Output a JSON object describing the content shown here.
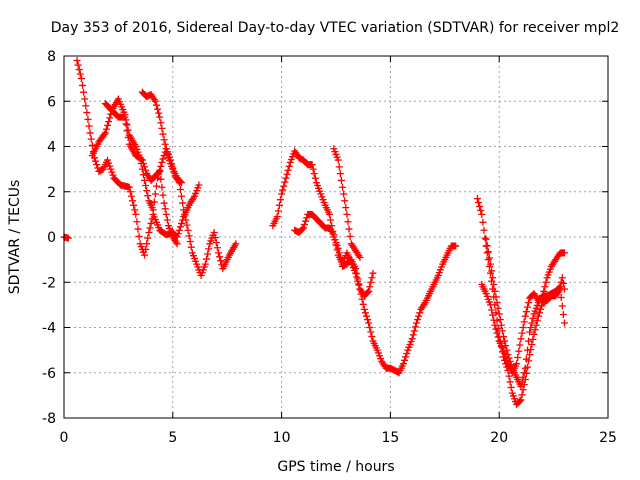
{
  "chart_data": {
    "type": "scatter",
    "title": "Day 353 of 2016, Sidereal Day-to-day VTEC variation (SDTVAR) for receiver mpl2",
    "xlabel": "GPS time / hours",
    "ylabel": "SDTVAR / TECUs",
    "xlim": [
      0,
      25
    ],
    "ylim": [
      -8,
      8
    ],
    "xticks": [
      "0",
      "5",
      "10",
      "15",
      "20",
      "25"
    ],
    "yticks": [
      "-8",
      "-6",
      "-4",
      "-2",
      "0",
      "2",
      "4",
      "6",
      "8"
    ],
    "grid": true,
    "marker": "plus",
    "color": "#ff0000",
    "segments": [
      {
        "points": [
          [
            0.0,
            0.0
          ],
          [
            0.2,
            -0.05
          ]
        ]
      },
      {
        "points": [
          [
            0.6,
            7.8
          ],
          [
            0.8,
            7.0
          ],
          [
            1.0,
            5.8
          ],
          [
            1.2,
            4.6
          ],
          [
            1.4,
            3.5
          ],
          [
            1.6,
            2.9
          ],
          [
            1.8,
            3.0
          ],
          [
            2.0,
            3.4
          ],
          [
            2.3,
            2.6
          ],
          [
            2.6,
            2.3
          ],
          [
            3.0,
            2.2
          ],
          [
            3.3,
            1.0
          ],
          [
            3.5,
            -0.3
          ],
          [
            3.7,
            -0.8
          ],
          [
            3.9,
            0.2
          ],
          [
            4.1,
            1.0
          ],
          [
            4.4,
            0.3
          ],
          [
            4.7,
            0.1
          ],
          [
            5.0,
            0.2
          ],
          [
            5.2,
            0.0
          ],
          [
            5.5,
            0.9
          ],
          [
            5.8,
            1.5
          ],
          [
            6.0,
            1.8
          ],
          [
            6.2,
            2.3
          ]
        ]
      },
      {
        "points": [
          [
            1.3,
            3.6
          ],
          [
            1.6,
            4.2
          ],
          [
            1.9,
            4.6
          ],
          [
            2.2,
            5.6
          ],
          [
            2.5,
            6.1
          ],
          [
            2.8,
            5.4
          ],
          [
            3.0,
            4.5
          ],
          [
            3.3,
            4.0
          ],
          [
            3.5,
            3.5
          ],
          [
            3.7,
            2.5
          ],
          [
            3.9,
            1.6
          ],
          [
            4.1,
            1.2
          ],
          [
            4.3,
            2.6
          ],
          [
            4.5,
            3.3
          ],
          [
            4.7,
            3.9
          ],
          [
            4.9,
            3.4
          ],
          [
            5.1,
            2.7
          ],
          [
            5.3,
            2.4
          ],
          [
            5.5,
            1.2
          ],
          [
            5.7,
            0.3
          ],
          [
            5.9,
            -0.7
          ],
          [
            6.1,
            -1.2
          ],
          [
            6.3,
            -1.7
          ],
          [
            6.5,
            -1.2
          ],
          [
            6.7,
            -0.3
          ],
          [
            6.9,
            0.2
          ],
          [
            7.1,
            -0.7
          ],
          [
            7.3,
            -1.4
          ],
          [
            7.6,
            -0.8
          ],
          [
            7.9,
            -0.3
          ]
        ]
      },
      {
        "points": [
          [
            1.9,
            5.9
          ],
          [
            2.2,
            5.6
          ],
          [
            2.5,
            5.3
          ],
          [
            2.8,
            5.3
          ],
          [
            3.0,
            4.1
          ],
          [
            3.3,
            3.6
          ],
          [
            3.6,
            3.4
          ],
          [
            3.8,
            2.8
          ],
          [
            4.0,
            2.5
          ],
          [
            4.2,
            2.7
          ],
          [
            4.4,
            2.9
          ],
          [
            4.6,
            1.5
          ],
          [
            4.8,
            0.5
          ],
          [
            5.0,
            0.0
          ],
          [
            5.2,
            -0.3
          ]
        ]
      },
      {
        "points": [
          [
            3.6,
            6.4
          ],
          [
            3.8,
            6.2
          ],
          [
            4.0,
            6.3
          ],
          [
            4.2,
            6.0
          ],
          [
            4.4,
            5.3
          ],
          [
            4.6,
            4.3
          ],
          [
            4.8,
            3.5
          ],
          [
            5.0,
            3.0
          ],
          [
            5.2,
            2.6
          ],
          [
            5.4,
            2.4
          ]
        ]
      },
      {
        "points": [
          [
            9.6,
            0.5
          ],
          [
            9.8,
            0.9
          ],
          [
            10.0,
            1.9
          ],
          [
            10.2,
            2.6
          ],
          [
            10.4,
            3.3
          ],
          [
            10.6,
            3.8
          ],
          [
            10.8,
            3.5
          ],
          [
            11.0,
            3.4
          ],
          [
            11.2,
            3.2
          ],
          [
            11.4,
            3.2
          ],
          [
            11.6,
            2.4
          ],
          [
            11.8,
            1.9
          ],
          [
            12.0,
            1.4
          ],
          [
            12.2,
            1.0
          ],
          [
            12.4,
            0.0
          ],
          [
            12.6,
            -0.5
          ],
          [
            12.8,
            -1.3
          ],
          [
            13.0,
            -1.2
          ],
          [
            13.2,
            -1.0
          ],
          [
            13.4,
            -1.4
          ],
          [
            13.6,
            -2.3
          ],
          [
            13.8,
            -2.6
          ],
          [
            14.0,
            -2.4
          ],
          [
            14.2,
            -1.6
          ]
        ]
      },
      {
        "points": [
          [
            10.6,
            0.3
          ],
          [
            10.8,
            0.2
          ],
          [
            11.0,
            0.4
          ],
          [
            11.2,
            1.0
          ],
          [
            11.4,
            1.0
          ],
          [
            11.6,
            0.8
          ],
          [
            11.8,
            0.6
          ],
          [
            12.0,
            0.4
          ],
          [
            12.2,
            0.4
          ],
          [
            12.4,
            0.1
          ],
          [
            12.6,
            -0.8
          ],
          [
            12.8,
            -1.2
          ],
          [
            13.0,
            -0.7
          ],
          [
            13.2,
            -1.1
          ],
          [
            13.4,
            -1.6
          ],
          [
            13.6,
            -2.3
          ],
          [
            13.8,
            -3.2
          ],
          [
            14.0,
            -3.8
          ],
          [
            14.2,
            -4.6
          ],
          [
            14.4,
            -5.0
          ],
          [
            14.6,
            -5.5
          ],
          [
            14.8,
            -5.8
          ],
          [
            15.0,
            -5.8
          ],
          [
            15.2,
            -5.9
          ],
          [
            15.4,
            -6.0
          ],
          [
            15.6,
            -5.6
          ],
          [
            15.8,
            -5.0
          ],
          [
            16.0,
            -4.5
          ],
          [
            16.2,
            -3.8
          ],
          [
            16.4,
            -3.2
          ],
          [
            16.6,
            -2.9
          ],
          [
            16.8,
            -2.5
          ],
          [
            17.0,
            -2.1
          ],
          [
            17.2,
            -1.7
          ],
          [
            17.4,
            -1.2
          ],
          [
            17.6,
            -0.8
          ],
          [
            17.8,
            -0.4
          ],
          [
            18.0,
            -0.4
          ]
        ]
      },
      {
        "points": [
          [
            12.4,
            3.9
          ],
          [
            12.6,
            3.4
          ],
          [
            12.8,
            2.2
          ],
          [
            13.0,
            1.0
          ],
          [
            13.2,
            -0.3
          ],
          [
            13.4,
            -0.6
          ],
          [
            13.6,
            -0.9
          ]
        ]
      },
      {
        "points": [
          [
            19.0,
            1.7
          ],
          [
            19.2,
            1.0
          ],
          [
            19.4,
            -0.4
          ],
          [
            19.6,
            -1.6
          ],
          [
            19.8,
            -3.0
          ],
          [
            20.0,
            -4.4
          ],
          [
            20.2,
            -5.3
          ],
          [
            20.4,
            -5.9
          ],
          [
            20.6,
            -6.9
          ],
          [
            20.8,
            -7.4
          ],
          [
            21.0,
            -7.2
          ],
          [
            21.2,
            -6.3
          ],
          [
            21.4,
            -5.2
          ],
          [
            21.6,
            -4.3
          ],
          [
            21.8,
            -3.5
          ],
          [
            22.0,
            -2.9
          ],
          [
            22.2,
            -2.8
          ],
          [
            22.4,
            -2.6
          ],
          [
            22.6,
            -2.6
          ],
          [
            22.8,
            -2.3
          ],
          [
            23.0,
            -3.8
          ]
        ]
      },
      {
        "points": [
          [
            19.2,
            -2.1
          ],
          [
            19.4,
            -2.5
          ],
          [
            19.6,
            -3.0
          ],
          [
            19.8,
            -3.9
          ],
          [
            20.0,
            -4.6
          ],
          [
            20.2,
            -5.0
          ],
          [
            20.4,
            -5.6
          ],
          [
            20.6,
            -6.0
          ],
          [
            20.8,
            -5.6
          ],
          [
            21.0,
            -4.5
          ],
          [
            21.2,
            -3.5
          ],
          [
            21.4,
            -2.7
          ],
          [
            21.6,
            -2.5
          ],
          [
            21.8,
            -2.8
          ],
          [
            22.0,
            -2.6
          ],
          [
            22.2,
            -1.8
          ],
          [
            22.4,
            -1.3
          ],
          [
            22.6,
            -1.0
          ],
          [
            22.8,
            -0.7
          ],
          [
            23.0,
            -0.7
          ]
        ]
      },
      {
        "points": [
          [
            19.4,
            -0.1
          ],
          [
            19.6,
            -1.2
          ],
          [
            19.8,
            -2.4
          ],
          [
            20.0,
            -3.4
          ],
          [
            20.2,
            -4.4
          ],
          [
            20.4,
            -5.2
          ],
          [
            20.6,
            -5.8
          ],
          [
            20.8,
            -6.2
          ],
          [
            21.0,
            -6.6
          ],
          [
            21.2,
            -5.8
          ],
          [
            21.4,
            -4.2
          ],
          [
            21.6,
            -3.4
          ],
          [
            21.8,
            -2.9
          ],
          [
            22.0,
            -2.6
          ],
          [
            22.2,
            -2.6
          ],
          [
            22.4,
            -2.5
          ],
          [
            22.6,
            -2.4
          ],
          [
            22.8,
            -2.2
          ],
          [
            22.9,
            -1.8
          ],
          [
            23.0,
            -2.3
          ]
        ]
      }
    ]
  }
}
